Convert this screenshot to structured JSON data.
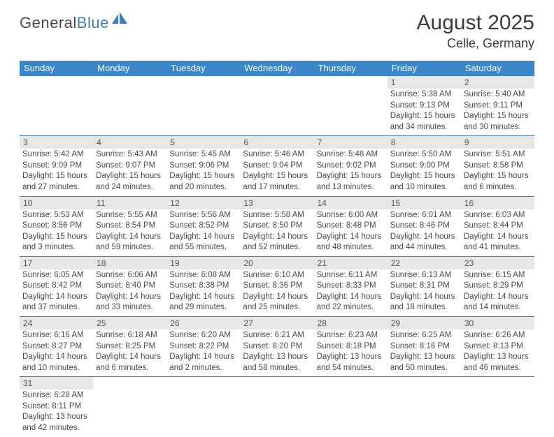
{
  "logo": {
    "text1": "General",
    "text2": "Blue"
  },
  "title": "August 2025",
  "location": "Celle, Germany",
  "colors": {
    "header_bg": "#3a86c8",
    "header_fg": "#ffffff",
    "daynum_bg": "#e7e7e7",
    "border": "#3a7fc0",
    "logo_blue": "#3a7fc0",
    "text": "#4a4a4a"
  },
  "day_names": [
    "Sunday",
    "Monday",
    "Tuesday",
    "Wednesday",
    "Thursday",
    "Friday",
    "Saturday"
  ],
  "weeks": [
    [
      null,
      null,
      null,
      null,
      null,
      {
        "n": "1",
        "sr": "Sunrise: 5:38 AM",
        "ss": "Sunset: 9:13 PM",
        "d1": "Daylight: 15 hours",
        "d2": "and 34 minutes."
      },
      {
        "n": "2",
        "sr": "Sunrise: 5:40 AM",
        "ss": "Sunset: 9:11 PM",
        "d1": "Daylight: 15 hours",
        "d2": "and 30 minutes."
      }
    ],
    [
      {
        "n": "3",
        "sr": "Sunrise: 5:42 AM",
        "ss": "Sunset: 9:09 PM",
        "d1": "Daylight: 15 hours",
        "d2": "and 27 minutes."
      },
      {
        "n": "4",
        "sr": "Sunrise: 5:43 AM",
        "ss": "Sunset: 9:07 PM",
        "d1": "Daylight: 15 hours",
        "d2": "and 24 minutes."
      },
      {
        "n": "5",
        "sr": "Sunrise: 5:45 AM",
        "ss": "Sunset: 9:06 PM",
        "d1": "Daylight: 15 hours",
        "d2": "and 20 minutes."
      },
      {
        "n": "6",
        "sr": "Sunrise: 5:46 AM",
        "ss": "Sunset: 9:04 PM",
        "d1": "Daylight: 15 hours",
        "d2": "and 17 minutes."
      },
      {
        "n": "7",
        "sr": "Sunrise: 5:48 AM",
        "ss": "Sunset: 9:02 PM",
        "d1": "Daylight: 15 hours",
        "d2": "and 13 minutes."
      },
      {
        "n": "8",
        "sr": "Sunrise: 5:50 AM",
        "ss": "Sunset: 9:00 PM",
        "d1": "Daylight: 15 hours",
        "d2": "and 10 minutes."
      },
      {
        "n": "9",
        "sr": "Sunrise: 5:51 AM",
        "ss": "Sunset: 8:58 PM",
        "d1": "Daylight: 15 hours",
        "d2": "and 6 minutes."
      }
    ],
    [
      {
        "n": "10",
        "sr": "Sunrise: 5:53 AM",
        "ss": "Sunset: 8:56 PM",
        "d1": "Daylight: 15 hours",
        "d2": "and 3 minutes."
      },
      {
        "n": "11",
        "sr": "Sunrise: 5:55 AM",
        "ss": "Sunset: 8:54 PM",
        "d1": "Daylight: 14 hours",
        "d2": "and 59 minutes."
      },
      {
        "n": "12",
        "sr": "Sunrise: 5:56 AM",
        "ss": "Sunset: 8:52 PM",
        "d1": "Daylight: 14 hours",
        "d2": "and 55 minutes."
      },
      {
        "n": "13",
        "sr": "Sunrise: 5:58 AM",
        "ss": "Sunset: 8:50 PM",
        "d1": "Daylight: 14 hours",
        "d2": "and 52 minutes."
      },
      {
        "n": "14",
        "sr": "Sunrise: 6:00 AM",
        "ss": "Sunset: 8:48 PM",
        "d1": "Daylight: 14 hours",
        "d2": "and 48 minutes."
      },
      {
        "n": "15",
        "sr": "Sunrise: 6:01 AM",
        "ss": "Sunset: 8:46 PM",
        "d1": "Daylight: 14 hours",
        "d2": "and 44 minutes."
      },
      {
        "n": "16",
        "sr": "Sunrise: 6:03 AM",
        "ss": "Sunset: 8:44 PM",
        "d1": "Daylight: 14 hours",
        "d2": "and 41 minutes."
      }
    ],
    [
      {
        "n": "17",
        "sr": "Sunrise: 6:05 AM",
        "ss": "Sunset: 8:42 PM",
        "d1": "Daylight: 14 hours",
        "d2": "and 37 minutes."
      },
      {
        "n": "18",
        "sr": "Sunrise: 6:06 AM",
        "ss": "Sunset: 8:40 PM",
        "d1": "Daylight: 14 hours",
        "d2": "and 33 minutes."
      },
      {
        "n": "19",
        "sr": "Sunrise: 6:08 AM",
        "ss": "Sunset: 8:38 PM",
        "d1": "Daylight: 14 hours",
        "d2": "and 29 minutes."
      },
      {
        "n": "20",
        "sr": "Sunrise: 6:10 AM",
        "ss": "Sunset: 8:36 PM",
        "d1": "Daylight: 14 hours",
        "d2": "and 25 minutes."
      },
      {
        "n": "21",
        "sr": "Sunrise: 6:11 AM",
        "ss": "Sunset: 8:33 PM",
        "d1": "Daylight: 14 hours",
        "d2": "and 22 minutes."
      },
      {
        "n": "22",
        "sr": "Sunrise: 6:13 AM",
        "ss": "Sunset: 8:31 PM",
        "d1": "Daylight: 14 hours",
        "d2": "and 18 minutes."
      },
      {
        "n": "23",
        "sr": "Sunrise: 6:15 AM",
        "ss": "Sunset: 8:29 PM",
        "d1": "Daylight: 14 hours",
        "d2": "and 14 minutes."
      }
    ],
    [
      {
        "n": "24",
        "sr": "Sunrise: 6:16 AM",
        "ss": "Sunset: 8:27 PM",
        "d1": "Daylight: 14 hours",
        "d2": "and 10 minutes."
      },
      {
        "n": "25",
        "sr": "Sunrise: 6:18 AM",
        "ss": "Sunset: 8:25 PM",
        "d1": "Daylight: 14 hours",
        "d2": "and 6 minutes."
      },
      {
        "n": "26",
        "sr": "Sunrise: 6:20 AM",
        "ss": "Sunset: 8:22 PM",
        "d1": "Daylight: 14 hours",
        "d2": "and 2 minutes."
      },
      {
        "n": "27",
        "sr": "Sunrise: 6:21 AM",
        "ss": "Sunset: 8:20 PM",
        "d1": "Daylight: 13 hours",
        "d2": "and 58 minutes."
      },
      {
        "n": "28",
        "sr": "Sunrise: 6:23 AM",
        "ss": "Sunset: 8:18 PM",
        "d1": "Daylight: 13 hours",
        "d2": "and 54 minutes."
      },
      {
        "n": "29",
        "sr": "Sunrise: 6:25 AM",
        "ss": "Sunset: 8:16 PM",
        "d1": "Daylight: 13 hours",
        "d2": "and 50 minutes."
      },
      {
        "n": "30",
        "sr": "Sunrise: 6:26 AM",
        "ss": "Sunset: 8:13 PM",
        "d1": "Daylight: 13 hours",
        "d2": "and 46 minutes."
      }
    ],
    [
      {
        "n": "31",
        "sr": "Sunrise: 6:28 AM",
        "ss": "Sunset: 8:11 PM",
        "d1": "Daylight: 13 hours",
        "d2": "and 42 minutes."
      },
      null,
      null,
      null,
      null,
      null,
      null
    ]
  ]
}
